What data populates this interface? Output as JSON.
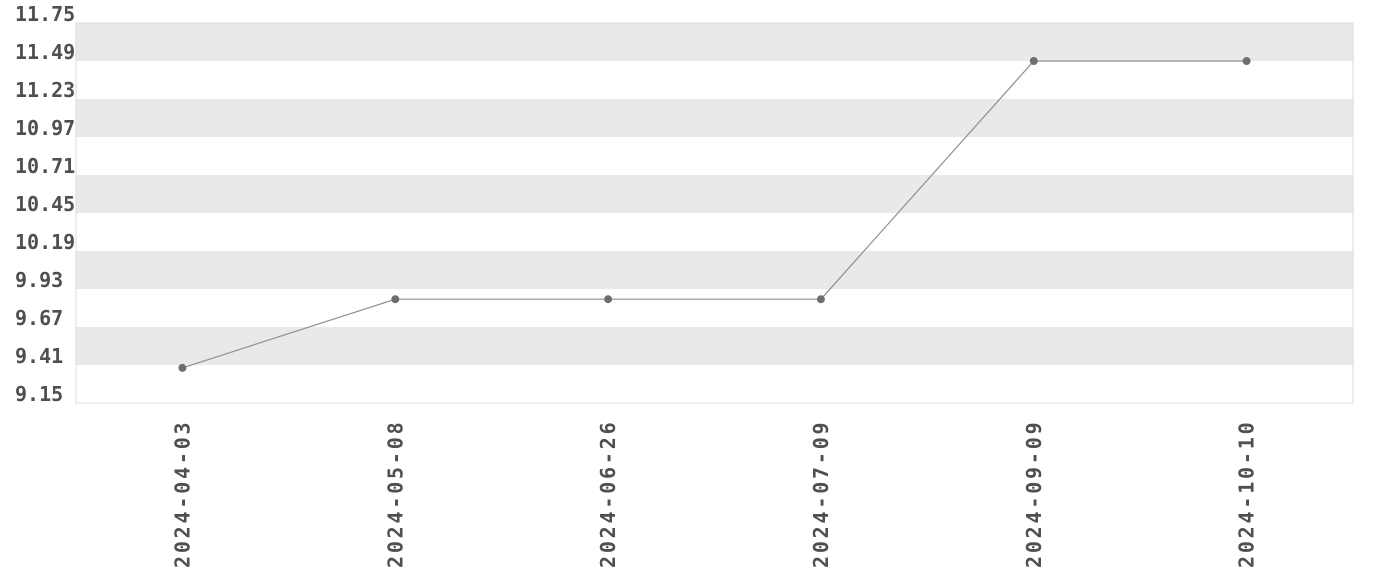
{
  "chart_data": {
    "type": "line",
    "title": "",
    "categories": [
      "2024-04-03",
      "2024-05-08",
      "2024-06-26",
      "2024-07-09",
      "2024-09-09",
      "2024-10-10"
    ],
    "values": [
      9.39,
      9.86,
      9.86,
      9.86,
      11.49,
      11.49
    ],
    "y_tick_labels": [
      "11.75",
      "11.49",
      "11.23",
      "10.97",
      "10.71",
      "10.45",
      "10.19",
      "9.93",
      "9.67",
      "9.41",
      "9.15"
    ],
    "ylim": [
      9.15,
      11.75
    ],
    "y_tick_step": 0.26,
    "xlabel": "",
    "ylabel": "",
    "x_tick_rotation": -90,
    "legend": "none",
    "grid_style": "alternating horizontal bands",
    "colors": {
      "background": "#ffffff",
      "band": "#e9e9e9",
      "plot_border": "#dcdcdc",
      "line": "#8f8f8f",
      "marker": "#6e6e6e",
      "tick_text": "#4f4f4f"
    }
  }
}
